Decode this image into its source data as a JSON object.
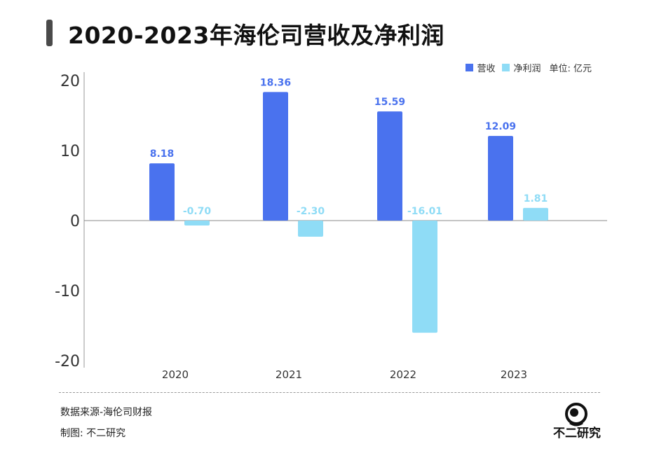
{
  "title": "2020-2023年海伦司营收及净利润",
  "legend": {
    "revenue_label": "营收",
    "profit_label": "净利润",
    "unit_label": "单位: 亿元"
  },
  "colors": {
    "revenue": "#4a72ee",
    "profit": "#8fdcf6",
    "title_bar": "#4a4a4a"
  },
  "chart_data": {
    "type": "bar",
    "title": "2020-2023年海伦司营收及净利润",
    "categories": [
      "2020",
      "2021",
      "2022",
      "2023"
    ],
    "series": [
      {
        "name": "营收",
        "values": [
          8.18,
          18.36,
          15.59,
          12.09
        ],
        "labels": [
          "8.18",
          "18.36",
          "15.59",
          "12.09"
        ]
      },
      {
        "name": "净利润",
        "values": [
          -0.7,
          -2.3,
          -16.01,
          1.81
        ],
        "labels": [
          "-0.70",
          "-2.30",
          "-16.01",
          "1.81"
        ]
      }
    ],
    "xlabel": "",
    "ylabel": "",
    "ylim": [
      -20,
      20
    ],
    "yticks": [
      "20",
      "10",
      "0",
      "-10",
      "-20"
    ],
    "unit": "亿元",
    "legend_position": "top-right",
    "grid": false
  },
  "footer": {
    "source": "数据来源-海伦司财报",
    "maker": "制图: 不二研究",
    "brand": "不二研究"
  }
}
